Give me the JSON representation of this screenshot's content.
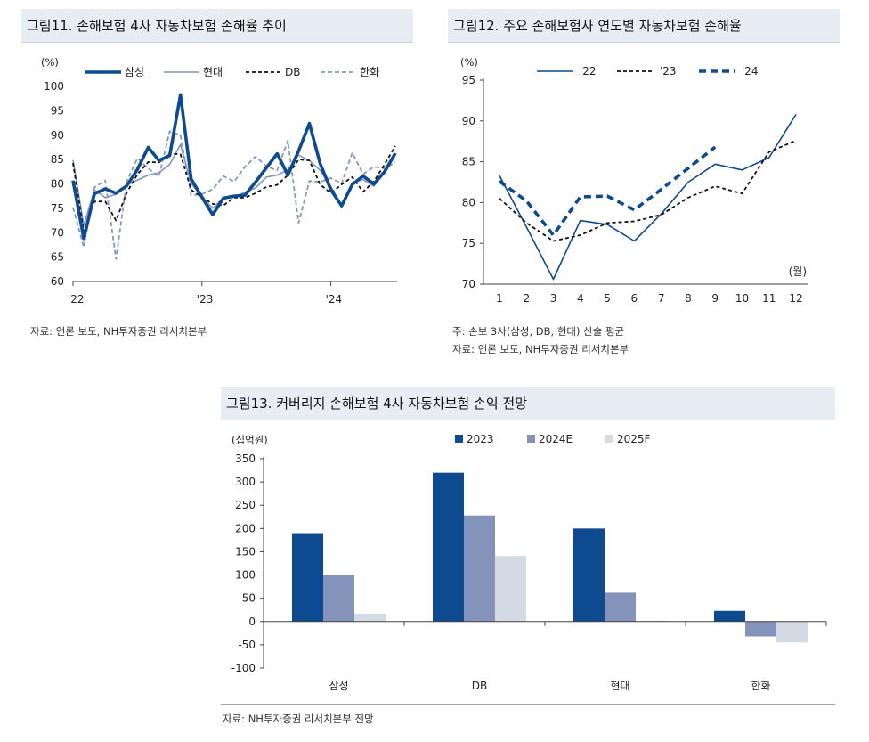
{
  "figures": {
    "fig11": {
      "title": "그림11. 손해보험 4사 자동차보험 손해율 추이",
      "source": "자료: 언론 보도, NH투자증권 리서치본부"
    },
    "fig12": {
      "title": "그림12. 주요 손해보험사 연도별 자동차보험 손해율",
      "note": "주: 손보 3사(삼성, DB, 현대) 산술 평균",
      "source": "자료: 언론 보도, NH투자증권 리서치본부"
    },
    "fig13": {
      "title": "그림13. 커버리지 손해보험 4사 자동차보험 손익 전망",
      "source": "자료: NH투자증권 리서치본부 전망"
    }
  },
  "colors": {
    "navy": "#0e4a8f",
    "mid": "#8393ba",
    "light": "#d5dbe5",
    "dash_light": "#8796c0"
  },
  "chart_data": [
    {
      "id": "fig11",
      "type": "line",
      "ylabel": "(%)",
      "ylim": [
        60,
        100
      ],
      "yticks": [
        60,
        65,
        70,
        75,
        80,
        85,
        90,
        95,
        100
      ],
      "xtick_labels": [
        {
          "label": "'22",
          "index": 0
        },
        {
          "label": "'23",
          "index": 12
        },
        {
          "label": "'24",
          "index": 24
        }
      ],
      "legend": "top",
      "series": [
        {
          "name": "삼성",
          "style": "thick-navy",
          "values": [
            80.7,
            68.8,
            78.0,
            79.0,
            78.1,
            79.6,
            83.0,
            87.5,
            84.8,
            85.8,
            98.3,
            81.0,
            77.3,
            73.7,
            77.1,
            77.5,
            77.7,
            80.4,
            83.3,
            86.2,
            81.8,
            86.8,
            92.4,
            84.2,
            78.8,
            75.5,
            79.9,
            81.6,
            80.0,
            82.5,
            86.3
          ]
        },
        {
          "name": "현대",
          "style": "thin-mid",
          "values": [
            84.9,
            71.5,
            78.8,
            77.2,
            77.9,
            79.8,
            80.8,
            81.8,
            82.3,
            84.0,
            88.1,
            80.1,
            77.4,
            75.0,
            77.2,
            77.3,
            78.3,
            79.2,
            81.4,
            81.8,
            82.9,
            85.9,
            84.8,
            82.8,
            79.5,
            75.5,
            80.3,
            80.9,
            79.5,
            82.4,
            85.9
          ]
        },
        {
          "name": "DB",
          "style": "dash-black",
          "values": [
            84.3,
            70.2,
            76.4,
            76.4,
            72.5,
            78.2,
            82.0,
            84.5,
            84.4,
            86.2,
            86.1,
            78.8,
            77.3,
            75.9,
            75.6,
            77.2,
            77.2,
            78.1,
            79.4,
            79.8,
            81.8,
            85.0,
            84.8,
            79.9,
            78.1,
            79.9,
            81.4,
            78.4,
            80.5,
            84.0,
            87.8
          ]
        },
        {
          "name": "한화",
          "style": "dash-light",
          "values": [
            75.2,
            67.0,
            79.3,
            80.7,
            64.6,
            80.5,
            85.3,
            83.2,
            81.5,
            90.8,
            90.0,
            77.7,
            77.9,
            78.9,
            81.6,
            80.5,
            83.5,
            85.6,
            83.6,
            82.8,
            88.9,
            72.0,
            80.6,
            80.4,
            81.2,
            80.1,
            86.4,
            82.0,
            83.5,
            83.2,
            84.4
          ]
        }
      ]
    },
    {
      "id": "fig12",
      "type": "line",
      "ylabel": "(%)",
      "xlabel": "(월)",
      "ylim": [
        70,
        95
      ],
      "yticks": [
        70,
        75,
        80,
        85,
        90,
        95
      ],
      "x": [
        1,
        2,
        3,
        4,
        5,
        6,
        7,
        8,
        9,
        10,
        11,
        12
      ],
      "legend": "top",
      "series": [
        {
          "name": "'22",
          "style": "solid-navy",
          "values": [
            83.3,
            77.0,
            70.6,
            77.8,
            77.3,
            75.3,
            78.6,
            82.5,
            84.7,
            84.0,
            85.5,
            90.8
          ]
        },
        {
          "name": "'23",
          "style": "dash-black",
          "values": [
            80.5,
            77.5,
            75.3,
            76.0,
            77.5,
            77.7,
            78.5,
            80.6,
            82.0,
            81.1,
            86.2,
            87.6
          ]
        },
        {
          "name": "'24",
          "style": "thick-dash-navy",
          "values": [
            82.6,
            80.2,
            76.0,
            80.7,
            80.8,
            79.1,
            81.6,
            84.2,
            86.8,
            null,
            null,
            null
          ]
        }
      ]
    },
    {
      "id": "fig13",
      "type": "bar",
      "ylabel": "(십억원)",
      "ylim": [
        -100,
        350
      ],
      "yticks": [
        -100,
        -50,
        0,
        50,
        100,
        150,
        200,
        250,
        300,
        350
      ],
      "categories": [
        "삼성",
        "DB",
        "현대",
        "한화"
      ],
      "legend": "top",
      "series": [
        {
          "name": "2023",
          "values": [
            190,
            320,
            200,
            23
          ]
        },
        {
          "name": "2024E",
          "values": [
            100,
            228,
            62,
            -32
          ]
        },
        {
          "name": "2025F",
          "values": [
            17,
            141,
            2,
            -45
          ]
        }
      ]
    }
  ]
}
